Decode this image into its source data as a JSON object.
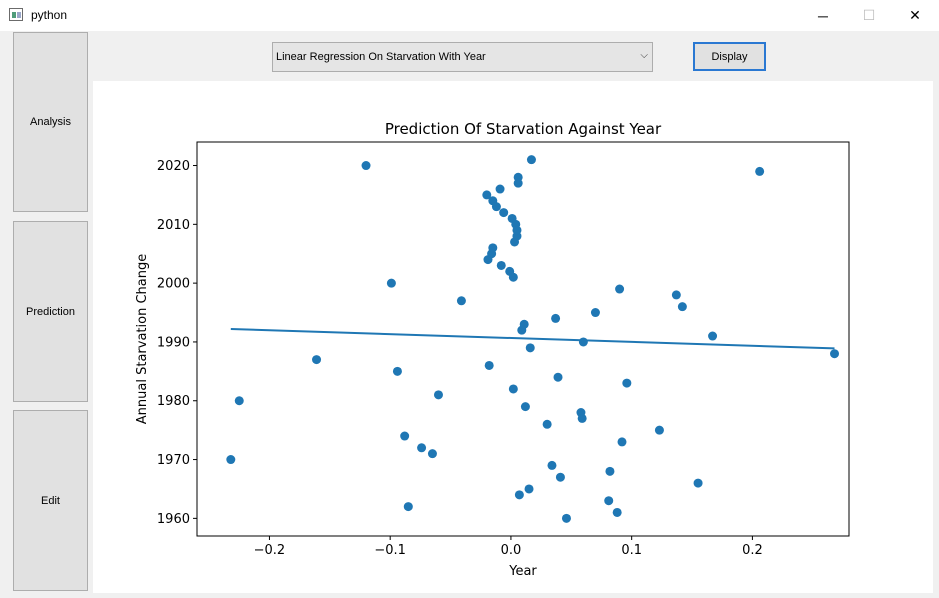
{
  "window": {
    "title": "python",
    "minimize_glyph": "─",
    "maximize_glyph": "☐",
    "close_glyph": "✕"
  },
  "sidebar": {
    "items": [
      {
        "label": "Analysis"
      },
      {
        "label": "Prediction"
      },
      {
        "label": "Edit"
      }
    ]
  },
  "toolbar": {
    "selected_option": "Linear Regression On Starvation With Year",
    "dropdown_glyph": "⌵",
    "display_label": "Display"
  },
  "colors": {
    "accent": "#2a78d2",
    "series": "#1f77b4"
  },
  "chart_data": {
    "type": "scatter",
    "title": "Prediction Of Starvation Against Year",
    "xlabel": "Year",
    "ylabel": "Annual Starvation Change",
    "xlim": [
      -0.26,
      0.28
    ],
    "ylim": [
      1957,
      2024
    ],
    "xticks": [
      -0.2,
      -0.1,
      0.0,
      0.1,
      0.2
    ],
    "xtick_labels": [
      "−0.2",
      "−0.1",
      "0.0",
      "0.1",
      "0.2"
    ],
    "yticks": [
      1960,
      1970,
      1980,
      1990,
      2000,
      2010,
      2020
    ],
    "ytick_labels": [
      "1960",
      "1970",
      "1980",
      "1990",
      "2000",
      "2010",
      "2020"
    ],
    "grid": false,
    "points": [
      {
        "x": -0.232,
        "y": 1970
      },
      {
        "x": -0.225,
        "y": 1980
      },
      {
        "x": -0.161,
        "y": 1987
      },
      {
        "x": -0.12,
        "y": 2020
      },
      {
        "x": -0.099,
        "y": 2000
      },
      {
        "x": -0.094,
        "y": 1985
      },
      {
        "x": -0.088,
        "y": 1974
      },
      {
        "x": -0.085,
        "y": 1962
      },
      {
        "x": -0.074,
        "y": 1972
      },
      {
        "x": -0.065,
        "y": 1971
      },
      {
        "x": -0.06,
        "y": 1981
      },
      {
        "x": -0.041,
        "y": 1997
      },
      {
        "x": -0.02,
        "y": 2015
      },
      {
        "x": -0.019,
        "y": 2004
      },
      {
        "x": -0.018,
        "y": 1986
      },
      {
        "x": -0.016,
        "y": 2005
      },
      {
        "x": -0.015,
        "y": 2014
      },
      {
        "x": -0.015,
        "y": 2006
      },
      {
        "x": -0.012,
        "y": 2013
      },
      {
        "x": -0.009,
        "y": 2016
      },
      {
        "x": -0.008,
        "y": 2003
      },
      {
        "x": -0.006,
        "y": 2012
      },
      {
        "x": -0.001,
        "y": 2002
      },
      {
        "x": 0.001,
        "y": 2011
      },
      {
        "x": 0.002,
        "y": 1982
      },
      {
        "x": 0.002,
        "y": 2001
      },
      {
        "x": 0.003,
        "y": 2007
      },
      {
        "x": 0.004,
        "y": 2010
      },
      {
        "x": 0.005,
        "y": 2008
      },
      {
        "x": 0.005,
        "y": 2009
      },
      {
        "x": 0.006,
        "y": 2018
      },
      {
        "x": 0.006,
        "y": 2017
      },
      {
        "x": 0.007,
        "y": 1964
      },
      {
        "x": 0.009,
        "y": 1992
      },
      {
        "x": 0.011,
        "y": 1993
      },
      {
        "x": 0.012,
        "y": 1979
      },
      {
        "x": 0.015,
        "y": 1965
      },
      {
        "x": 0.016,
        "y": 1989
      },
      {
        "x": 0.017,
        "y": 2021
      },
      {
        "x": 0.03,
        "y": 1976
      },
      {
        "x": 0.034,
        "y": 1969
      },
      {
        "x": 0.037,
        "y": 1994
      },
      {
        "x": 0.039,
        "y": 1984
      },
      {
        "x": 0.041,
        "y": 1967
      },
      {
        "x": 0.046,
        "y": 1960
      },
      {
        "x": 0.058,
        "y": 1978
      },
      {
        "x": 0.059,
        "y": 1977
      },
      {
        "x": 0.06,
        "y": 1990
      },
      {
        "x": 0.07,
        "y": 1995
      },
      {
        "x": 0.081,
        "y": 1963
      },
      {
        "x": 0.082,
        "y": 1968
      },
      {
        "x": 0.088,
        "y": 1961
      },
      {
        "x": 0.09,
        "y": 1999
      },
      {
        "x": 0.092,
        "y": 1973
      },
      {
        "x": 0.096,
        "y": 1983
      },
      {
        "x": 0.123,
        "y": 1975
      },
      {
        "x": 0.137,
        "y": 1998
      },
      {
        "x": 0.142,
        "y": 1996
      },
      {
        "x": 0.155,
        "y": 1966
      },
      {
        "x": 0.167,
        "y": 1991
      },
      {
        "x": 0.206,
        "y": 2019
      },
      {
        "x": 0.268,
        "y": 1988
      }
    ],
    "regression_line": [
      {
        "x": -0.232,
        "y": 1992.2
      },
      {
        "x": 0.268,
        "y": 1988.9
      }
    ]
  }
}
